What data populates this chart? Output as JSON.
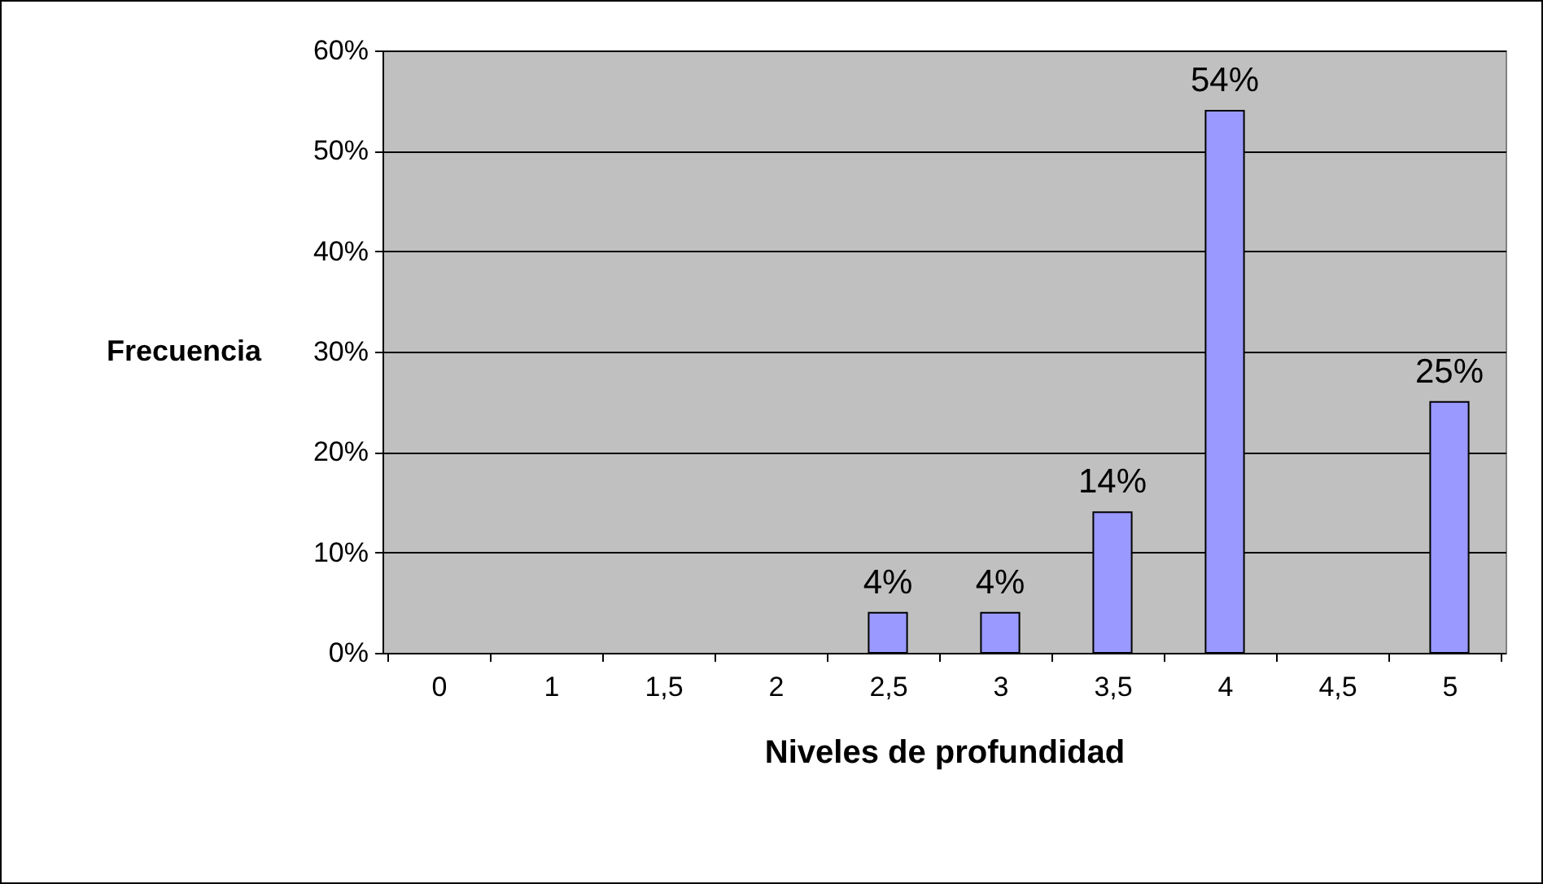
{
  "chart_data": {
    "type": "bar",
    "xlabel": "Niveles de profundidad",
    "ylabel": "Frecuencia",
    "categories": [
      "0",
      "1",
      "1,5",
      "2",
      "2,5",
      "3",
      "3,5",
      "4",
      "4,5",
      "5"
    ],
    "values": [
      0,
      0,
      0,
      0,
      4,
      4,
      14,
      54,
      0,
      25
    ],
    "value_labels": [
      null,
      null,
      null,
      null,
      "4%",
      "4%",
      "14%",
      "54%",
      null,
      "25%"
    ],
    "color": "#9999ff",
    "ylim": [
      0,
      60
    ],
    "yticks": [
      {
        "value": 0,
        "label": "0%"
      },
      {
        "value": 10,
        "label": "10%"
      },
      {
        "value": 20,
        "label": "20%"
      },
      {
        "value": 30,
        "label": "30%"
      },
      {
        "value": 40,
        "label": "40%"
      },
      {
        "value": 50,
        "label": "50%"
      },
      {
        "value": 60,
        "label": "60%"
      }
    ],
    "grid": "y"
  }
}
